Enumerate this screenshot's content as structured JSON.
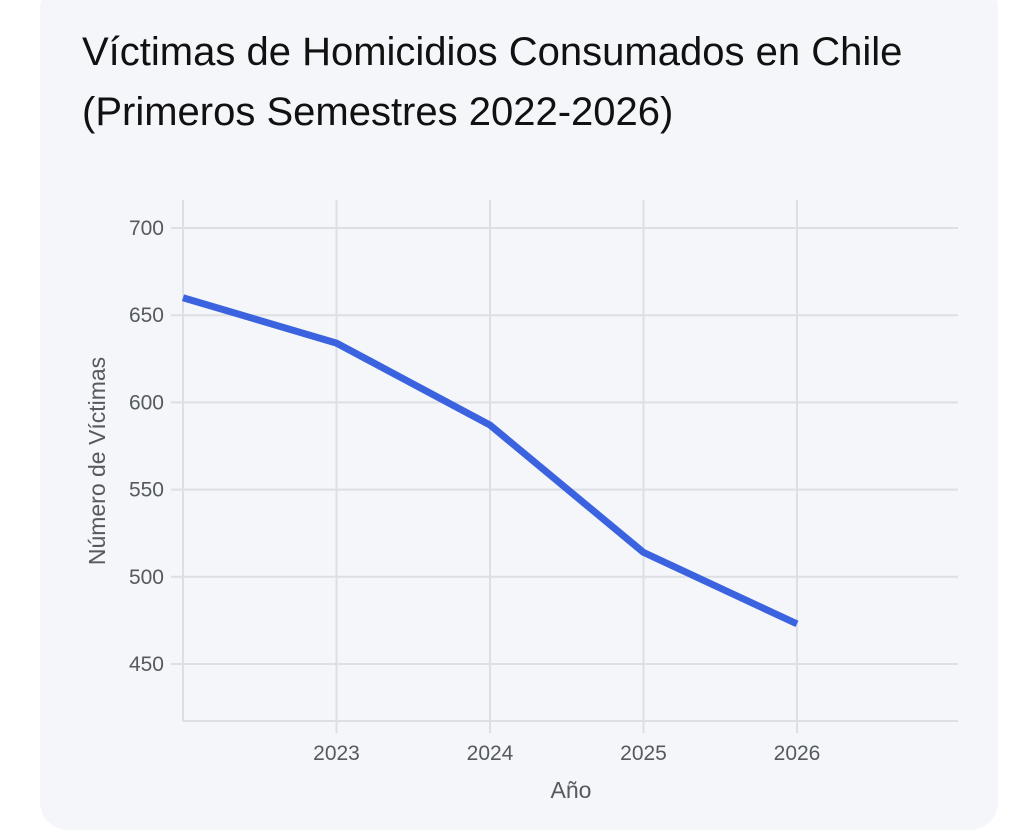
{
  "chart_data": {
    "type": "line",
    "title": "Víctimas de Homicidios Consumados en Chile (Primeros Semestres 2022-2026)",
    "xlabel": "Año",
    "ylabel": "Número de Víctimas",
    "x": [
      2022,
      2023,
      2024,
      2025,
      2026
    ],
    "x_ticks": [
      "2023",
      "2024",
      "2025",
      "2026"
    ],
    "y_ticks": [
      "700",
      "650",
      "600",
      "550",
      "500",
      "450"
    ],
    "series": [
      {
        "values": [
          660,
          634,
          587,
          514,
          473
        ]
      }
    ],
    "xlim": [
      2022,
      2027
    ],
    "ylim": [
      418,
      715
    ],
    "grid": true,
    "legend": "none",
    "line_color": "#3b63e0",
    "grid_color": "#dcdfe3"
  }
}
